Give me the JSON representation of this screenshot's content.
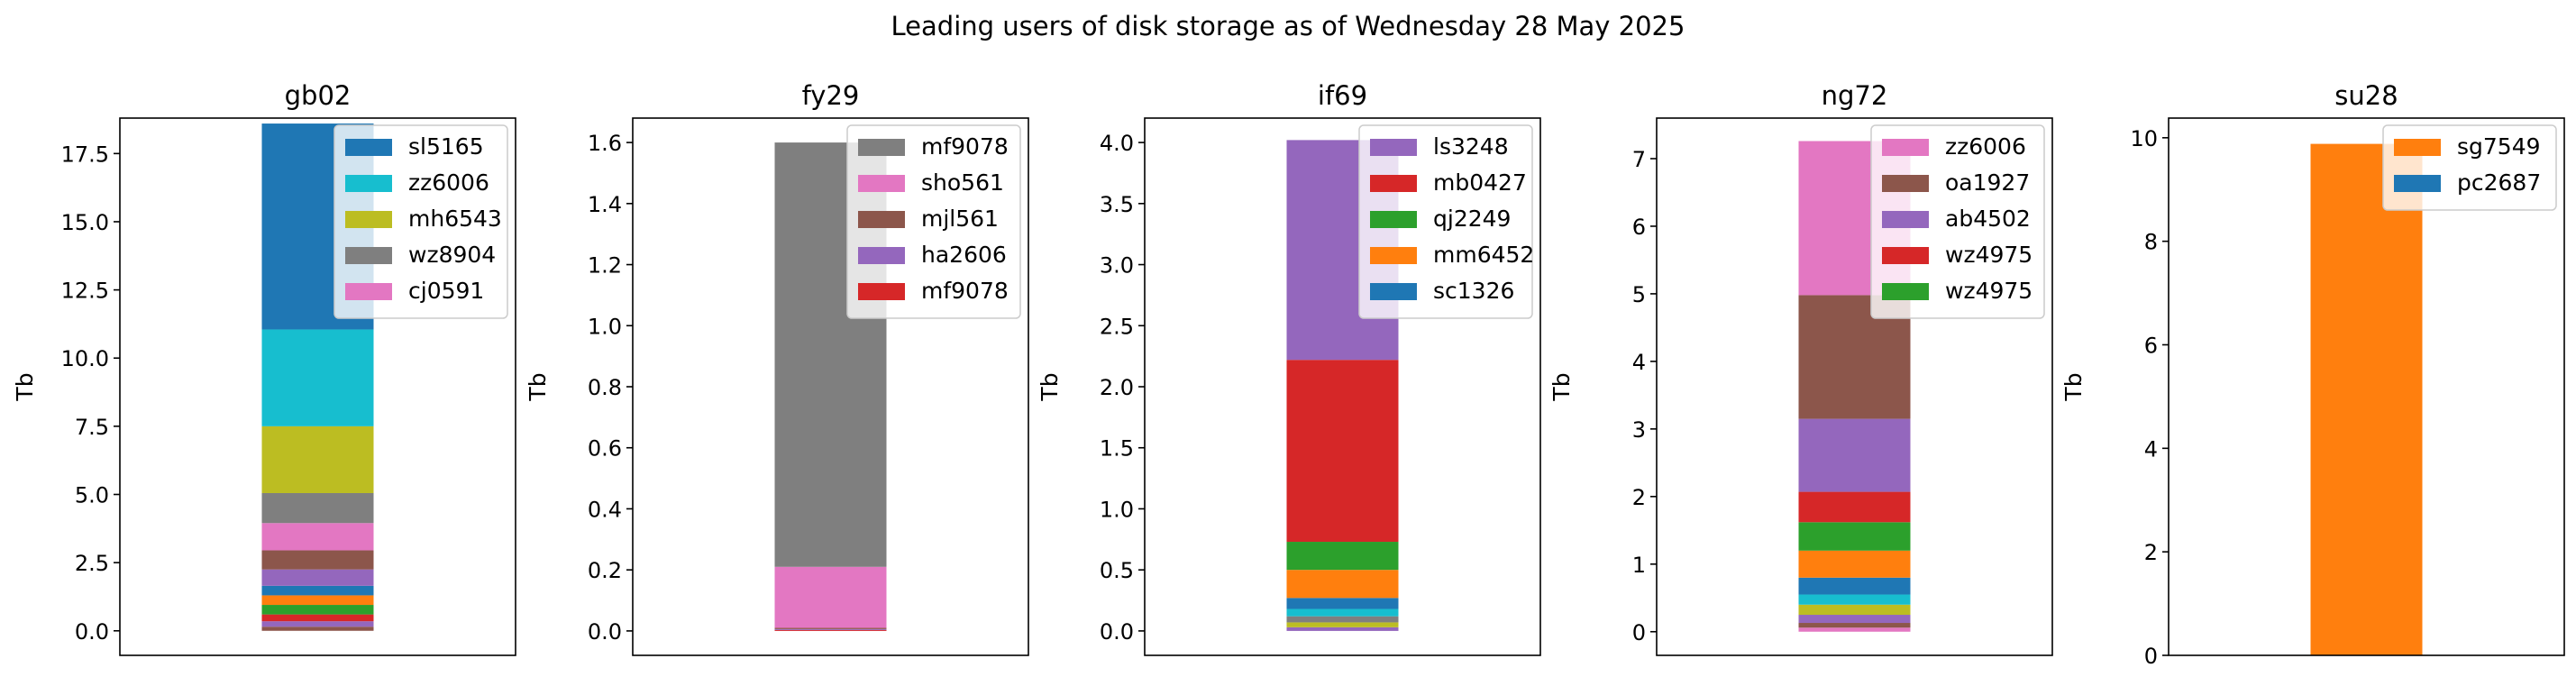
{
  "figure": {
    "suptitle": "Leading users of disk storage as of  Wednesday 28 May 2025"
  },
  "chart_data": [
    {
      "type": "bar",
      "stacked": true,
      "title": "gb02",
      "ylabel": "Tb",
      "xlabel": "",
      "ylim": [
        -0.9,
        18.8
      ],
      "yticks": [
        "0.0",
        "2.5",
        "5.0",
        "7.5",
        "10.0",
        "12.5",
        "15.0",
        "17.5"
      ],
      "legend_position": "top-right",
      "legend": [
        {
          "name": "sl5165",
          "color": "#1f77b4"
        },
        {
          "name": "zz6006",
          "color": "#17becf"
        },
        {
          "name": "mh6543",
          "color": "#bcbd22"
        },
        {
          "name": "wz8904",
          "color": "#7f7f7f"
        },
        {
          "name": "cj0591",
          "color": "#e377c2"
        }
      ],
      "segments": [
        {
          "value": 0.15,
          "color": "#8c564b"
        },
        {
          "value": 0.2,
          "color": "#9467bd"
        },
        {
          "value": 0.25,
          "color": "#d62728"
        },
        {
          "value": 0.35,
          "color": "#2ca02c"
        },
        {
          "value": 0.35,
          "color": "#ff7f0e"
        },
        {
          "value": 0.35,
          "color": "#1f77b4"
        },
        {
          "value": 0.6,
          "color": "#9467bd"
        },
        {
          "value": 0.7,
          "color": "#8c564b"
        },
        {
          "value": 1.0,
          "color": "#e377c2"
        },
        {
          "value": 1.1,
          "color": "#7f7f7f"
        },
        {
          "value": 2.45,
          "color": "#bcbd22"
        },
        {
          "value": 3.55,
          "color": "#17becf"
        },
        {
          "value": 7.55,
          "color": "#1f77b4"
        }
      ]
    },
    {
      "type": "bar",
      "stacked": true,
      "title": "fy29",
      "ylabel": "Tb",
      "xlabel": "",
      "ylim": [
        -0.08,
        1.68
      ],
      "yticks": [
        "0.0",
        "0.2",
        "0.4",
        "0.6",
        "0.8",
        "1.0",
        "1.2",
        "1.4",
        "1.6"
      ],
      "legend_position": "top-right",
      "legend": [
        {
          "name": "mf9078",
          "color": "#7f7f7f"
        },
        {
          "name": "sho561",
          "color": "#e377c2"
        },
        {
          "name": "mjl561",
          "color": "#8c564b"
        },
        {
          "name": "ha2606",
          "color": "#9467bd"
        },
        {
          "name": "mf9078",
          "color": "#d62728"
        }
      ],
      "segments": [
        {
          "value": 0.003,
          "color": "#d62728"
        },
        {
          "value": 0.003,
          "color": "#9467bd"
        },
        {
          "value": 0.004,
          "color": "#8c564b"
        },
        {
          "value": 0.2,
          "color": "#e377c2"
        },
        {
          "value": 1.39,
          "color": "#7f7f7f"
        }
      ]
    },
    {
      "type": "bar",
      "stacked": true,
      "title": "if69",
      "ylabel": "Tb",
      "xlabel": "",
      "ylim": [
        -0.2,
        4.2
      ],
      "yticks": [
        "0.0",
        "0.5",
        "1.0",
        "1.5",
        "2.0",
        "2.5",
        "3.0",
        "3.5",
        "4.0"
      ],
      "legend_position": "top-right",
      "legend": [
        {
          "name": "ls3248",
          "color": "#9467bd"
        },
        {
          "name": "mb0427",
          "color": "#d62728"
        },
        {
          "name": "qj2249",
          "color": "#2ca02c"
        },
        {
          "name": "mm6452",
          "color": "#ff7f0e"
        },
        {
          "name": "sc1326",
          "color": "#1f77b4"
        }
      ],
      "segments": [
        {
          "value": 0.03,
          "color": "#9467bd"
        },
        {
          "value": 0.04,
          "color": "#bcbd22"
        },
        {
          "value": 0.05,
          "color": "#7f7f7f"
        },
        {
          "value": 0.06,
          "color": "#17becf"
        },
        {
          "value": 0.09,
          "color": "#1f77b4"
        },
        {
          "value": 0.23,
          "color": "#ff7f0e"
        },
        {
          "value": 0.23,
          "color": "#2ca02c"
        },
        {
          "value": 1.49,
          "color": "#d62728"
        },
        {
          "value": 1.8,
          "color": "#9467bd"
        }
      ]
    },
    {
      "type": "bar",
      "stacked": true,
      "title": "ng72",
      "ylabel": "Tb",
      "xlabel": "",
      "ylim": [
        -0.35,
        7.6
      ],
      "yticks": [
        "0",
        "1",
        "2",
        "3",
        "4",
        "5",
        "6",
        "7"
      ],
      "legend_position": "top-right",
      "legend": [
        {
          "name": "zz6006",
          "color": "#e377c2"
        },
        {
          "name": "oa1927",
          "color": "#8c564b"
        },
        {
          "name": "ab4502",
          "color": "#9467bd"
        },
        {
          "name": "wz4975",
          "color": "#d62728"
        },
        {
          "name": "wz4975",
          "color": "#2ca02c"
        }
      ],
      "segments": [
        {
          "value": 0.06,
          "color": "#e377c2"
        },
        {
          "value": 0.07,
          "color": "#8c564b"
        },
        {
          "value": 0.12,
          "color": "#9467bd"
        },
        {
          "value": 0.15,
          "color": "#bcbd22"
        },
        {
          "value": 0.15,
          "color": "#17becf"
        },
        {
          "value": 0.25,
          "color": "#1f77b4"
        },
        {
          "value": 0.4,
          "color": "#ff7f0e"
        },
        {
          "value": 0.42,
          "color": "#2ca02c"
        },
        {
          "value": 0.45,
          "color": "#d62728"
        },
        {
          "value": 1.08,
          "color": "#9467bd"
        },
        {
          "value": 1.83,
          "color": "#8c564b"
        },
        {
          "value": 2.28,
          "color": "#e377c2"
        }
      ]
    },
    {
      "type": "bar",
      "stacked": true,
      "title": "su28",
      "ylabel": "Tb",
      "xlabel": "",
      "ylim": [
        0,
        10.38
      ],
      "yticks": [
        "0",
        "2",
        "4",
        "6",
        "8",
        "10"
      ],
      "legend_position": "top-right",
      "legend": [
        {
          "name": "sg7549",
          "color": "#ff7f0e"
        },
        {
          "name": "pc2687",
          "color": "#1f77b4"
        }
      ],
      "segments": [
        {
          "value": 0.002,
          "color": "#1f77b4"
        },
        {
          "value": 9.88,
          "color": "#ff7f0e"
        }
      ]
    }
  ]
}
